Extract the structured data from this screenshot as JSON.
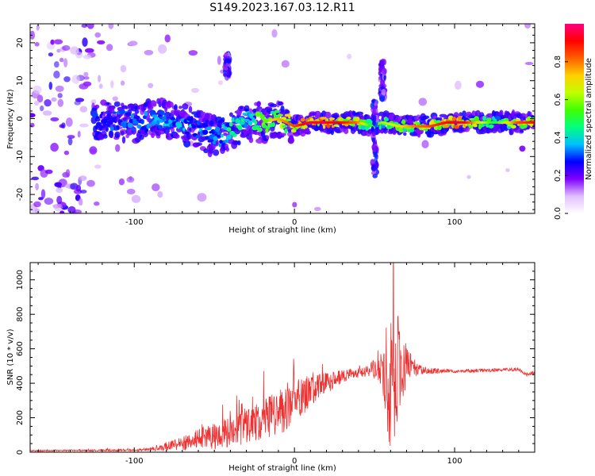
{
  "title": "S149.2023.167.03.12.R11",
  "chart_data": [
    {
      "type": "heatmap",
      "xlabel": "Height of straight line (km)",
      "ylabel": "Frequency (Hz)",
      "xlim": [
        -165,
        150
      ],
      "ylim": [
        -25,
        25
      ],
      "x_ticks": [
        -100,
        0,
        100
      ],
      "y_ticks": [
        -20,
        -10,
        0,
        10,
        20
      ],
      "colorbar": {
        "label": "Normalized spectral amplitude",
        "range": [
          0,
          1
        ],
        "ticks": [
          0.0,
          0.2,
          0.4,
          0.6,
          0.8
        ],
        "colors": [
          "#ffffff",
          "#e0c0ff",
          "#8000ff",
          "#0000ff",
          "#00c0ff",
          "#00ff80",
          "#40ff00",
          "#c0ff00",
          "#ffd000",
          "#ff6000",
          "#ff0000",
          "#ff0080"
        ]
      },
      "ridge": {
        "x": [
          -125,
          -100,
          -80,
          -65,
          -55,
          -48,
          -40,
          -30,
          -20,
          -10,
          0,
          10,
          20,
          30,
          40,
          48,
          55,
          65,
          75,
          85,
          95,
          105,
          115,
          125,
          140,
          150
        ],
        "frequency": [
          0,
          -1,
          0,
          -2,
          -4,
          -5,
          -3,
          -1,
          -1,
          0,
          -2,
          -1,
          -1,
          -1,
          -1,
          -2,
          -1,
          -2,
          -2,
          -2,
          -1,
          -1,
          -1,
          -1,
          -1,
          -1
        ],
        "amplitude": [
          0.35,
          0.4,
          0.45,
          0.45,
          0.45,
          0.45,
          0.55,
          0.6,
          0.7,
          0.75,
          0.85,
          0.95,
          0.95,
          0.9,
          0.8,
          0.5,
          0.6,
          0.7,
          0.8,
          0.85,
          0.9,
          0.95,
          0.7,
          0.5,
          0.85,
          0.9
        ]
      },
      "features": [
        {
          "x": -42,
          "frequency_range": [
            11,
            17
          ]
        },
        {
          "x": 50,
          "frequency_range": [
            -16,
            5
          ]
        },
        {
          "x": 55,
          "frequency_range": [
            5,
            15
          ]
        }
      ]
    },
    {
      "type": "line",
      "xlabel": "Height of straight line (km)",
      "ylabel": "SNR (10 * v/v)",
      "xlim": [
        -165,
        150
      ],
      "ylim": [
        0,
        1100
      ],
      "x_ticks": [
        -100,
        0,
        100
      ],
      "y_ticks": [
        0,
        200,
        400,
        600,
        800,
        1000
      ],
      "series_color": "#ee3030",
      "envelope": {
        "x": [
          -165,
          -140,
          -120,
          -100,
          -90,
          -80,
          -70,
          -60,
          -50,
          -40,
          -30,
          -20,
          -10,
          -5,
          0,
          5,
          10,
          20,
          30,
          40,
          45,
          50,
          55,
          58,
          60,
          62,
          65,
          70,
          75,
          80,
          90,
          100,
          120,
          140,
          145,
          150
        ],
        "base": [
          8,
          10,
          10,
          12,
          18,
          30,
          50,
          75,
          95,
          120,
          150,
          180,
          220,
          260,
          300,
          330,
          360,
          400,
          440,
          460,
          470,
          480,
          480,
          470,
          450,
          460,
          480,
          500,
          490,
          475,
          470,
          470,
          475,
          480,
          450,
          460
        ],
        "spread": [
          4,
          4,
          5,
          6,
          10,
          25,
          45,
          60,
          80,
          90,
          110,
          120,
          140,
          130,
          110,
          120,
          90,
          60,
          40,
          30,
          35,
          60,
          110,
          380,
          520,
          450,
          300,
          110,
          50,
          25,
          15,
          10,
          10,
          10,
          12,
          15
        ]
      }
    }
  ]
}
